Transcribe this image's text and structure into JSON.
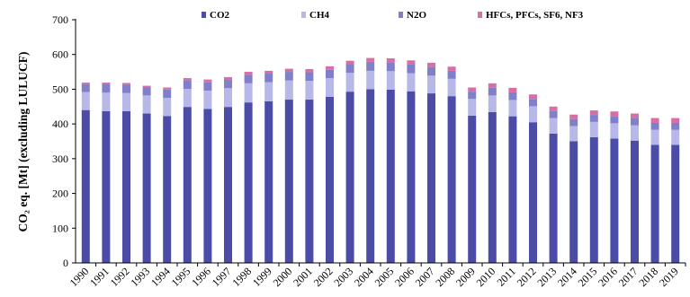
{
  "chart_data": {
    "type": "bar",
    "stacked": true,
    "categories": [
      "1990",
      "1991",
      "1992",
      "1993",
      "1994",
      "1995",
      "1996",
      "1997",
      "1998",
      "1999",
      "2000",
      "2001",
      "2002",
      "2003",
      "2004",
      "2005",
      "2006",
      "2007",
      "2008",
      "2009",
      "2010",
      "2011",
      "2012",
      "2013",
      "2014",
      "2015",
      "2016",
      "2017",
      "2018",
      "2019"
    ],
    "series": [
      {
        "name": "CO2",
        "color": "#4b4ba8",
        "values": [
          440,
          437,
          437,
          430,
          423,
          449,
          443,
          449,
          462,
          465,
          470,
          470,
          478,
          493,
          500,
          499,
          494,
          488,
          480,
          424,
          434,
          422,
          405,
          372,
          350,
          362,
          358,
          352,
          340,
          340
        ]
      },
      {
        "name": "CH4",
        "color": "#b8b8e8",
        "values": [
          52,
          53,
          52,
          52,
          52,
          52,
          53,
          54,
          55,
          55,
          55,
          54,
          54,
          54,
          53,
          53,
          52,
          51,
          50,
          48,
          48,
          47,
          46,
          45,
          44,
          44,
          44,
          44,
          43,
          43
        ]
      },
      {
        "name": "N2O",
        "color": "#7f7fca",
        "values": [
          23,
          24,
          24,
          23,
          24,
          25,
          25,
          25,
          25,
          25,
          25,
          25,
          24,
          25,
          26,
          26,
          25,
          25,
          23,
          21,
          22,
          22,
          21,
          20,
          20,
          20,
          20,
          20,
          20,
          20
        ]
      },
      {
        "name": "HFCs, PFCs, SF6, NF3",
        "color": "#d86fa4",
        "values": [
          4,
          5,
          5,
          5,
          6,
          6,
          7,
          7,
          8,
          8,
          9,
          9,
          10,
          10,
          11,
          11,
          12,
          12,
          12,
          12,
          13,
          13,
          13,
          13,
          13,
          13,
          14,
          14,
          14,
          14
        ]
      }
    ],
    "ylabel": "CO₂ eq. [Mt] (excluding LULUCF)",
    "ylim": [
      0,
      700
    ],
    "yticks": [
      0,
      100,
      200,
      300,
      400,
      500,
      600,
      700
    ],
    "grid": false,
    "legend_position": "top"
  }
}
